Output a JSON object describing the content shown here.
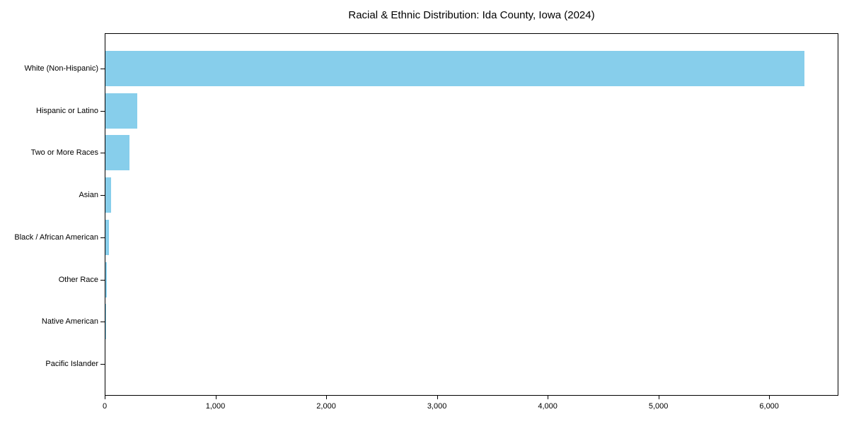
{
  "title": "Racial & Ethnic Distribution: Ida County, Iowa (2024)",
  "chart_data": {
    "type": "bar",
    "orientation": "horizontal",
    "title": "Racial & Ethnic Distribution: Ida County, Iowa (2024)",
    "categories": [
      "White (Non-Hispanic)",
      "Hispanic or Latino",
      "Two or More Races",
      "Asian",
      "Black / African American",
      "Other Race",
      "Native American",
      "Pacific Islander"
    ],
    "values": [
      6310,
      285,
      220,
      48,
      29,
      13,
      3,
      0
    ],
    "xlabel": "",
    "ylabel": "",
    "xlim": [
      0,
      6625
    ],
    "x_ticks": [
      0,
      1000,
      2000,
      3000,
      4000,
      5000,
      6000
    ],
    "x_tick_labels": [
      "0",
      "1,000",
      "2,000",
      "3,000",
      "4,000",
      "5,000",
      "6,000"
    ],
    "bar_color": "#87CEEB",
    "axis_color": "#000000",
    "background_color": "#ffffff",
    "grid": false,
    "legend": null
  }
}
